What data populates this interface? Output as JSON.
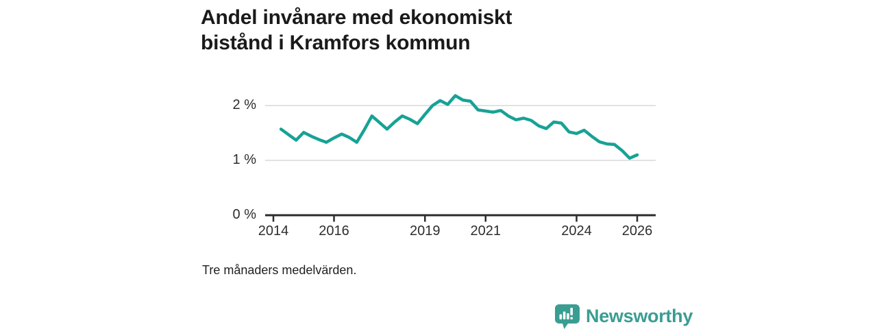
{
  "title": {
    "full": "Andel invånare med ekonomiskt bistånd i Kramfors kommun",
    "line1": "Andel invånare med ekonomiskt",
    "line2": "bistånd i Kramfors kommun"
  },
  "footnote": "Tre månaders medelvärden.",
  "brand": {
    "name": "Newsworthy",
    "icon": "bar-chart-speech-bubble-icon"
  },
  "colors": {
    "line": "#17a296",
    "grid": "#d8d8d8",
    "axis": "#2b2b2b",
    "title_text": "#1a1a1a",
    "tick_text": "#2d2d2d",
    "brand_teal": "#3a9d92"
  },
  "chart_data": {
    "type": "line",
    "title": "Andel invånare med ekonomiskt bistånd i Kramfors kommun",
    "subtitle": "Tre månaders medelvärden.",
    "series_name": "Andel invånare med ekonomiskt bistånd, Kramfors kommun",
    "unit": "%",
    "grid": "horizontal",
    "legend": "none",
    "xlim": [
      2013.7,
      2026.9
    ],
    "ylim": [
      0,
      2.3
    ],
    "yticks": [
      {
        "value": 0,
        "label": "0 %"
      },
      {
        "value": 1,
        "label": "1 %"
      },
      {
        "value": 2,
        "label": "2 %"
      }
    ],
    "xticks": [
      {
        "value": 2014,
        "label": "2014"
      },
      {
        "value": 2016,
        "label": "2016"
      },
      {
        "value": 2019,
        "label": "2019"
      },
      {
        "value": 2021,
        "label": "2021"
      },
      {
        "value": 2024,
        "label": "2024"
      },
      {
        "value": 2026,
        "label": "2026"
      }
    ],
    "x": [
      2014.25,
      2014.5,
      2014.75,
      2015.0,
      2015.25,
      2015.5,
      2015.75,
      2016.0,
      2016.25,
      2016.5,
      2016.75,
      2017.0,
      2017.25,
      2017.5,
      2017.75,
      2018.0,
      2018.25,
      2018.5,
      2018.75,
      2019.0,
      2019.25,
      2019.5,
      2019.75,
      2020.0,
      2020.25,
      2020.5,
      2020.75,
      2021.0,
      2021.25,
      2021.5,
      2021.75,
      2022.0,
      2022.25,
      2022.5,
      2022.75,
      2023.0,
      2023.25,
      2023.5,
      2023.75,
      2024.0,
      2024.25,
      2024.5,
      2024.75,
      2025.0,
      2025.25,
      2025.5,
      2025.75,
      2026.0
    ],
    "values": [
      1.57,
      1.47,
      1.37,
      1.51,
      1.44,
      1.38,
      1.33,
      1.41,
      1.48,
      1.42,
      1.33,
      1.56,
      1.81,
      1.69,
      1.57,
      1.7,
      1.81,
      1.75,
      1.67,
      1.84,
      2.0,
      2.09,
      2.02,
      2.18,
      2.1,
      2.08,
      1.92,
      1.9,
      1.88,
      1.91,
      1.81,
      1.74,
      1.77,
      1.73,
      1.63,
      1.58,
      1.7,
      1.68,
      1.52,
      1.49,
      1.55,
      1.44,
      1.34,
      1.3,
      1.29,
      1.18,
      1.04,
      1.1
    ]
  }
}
